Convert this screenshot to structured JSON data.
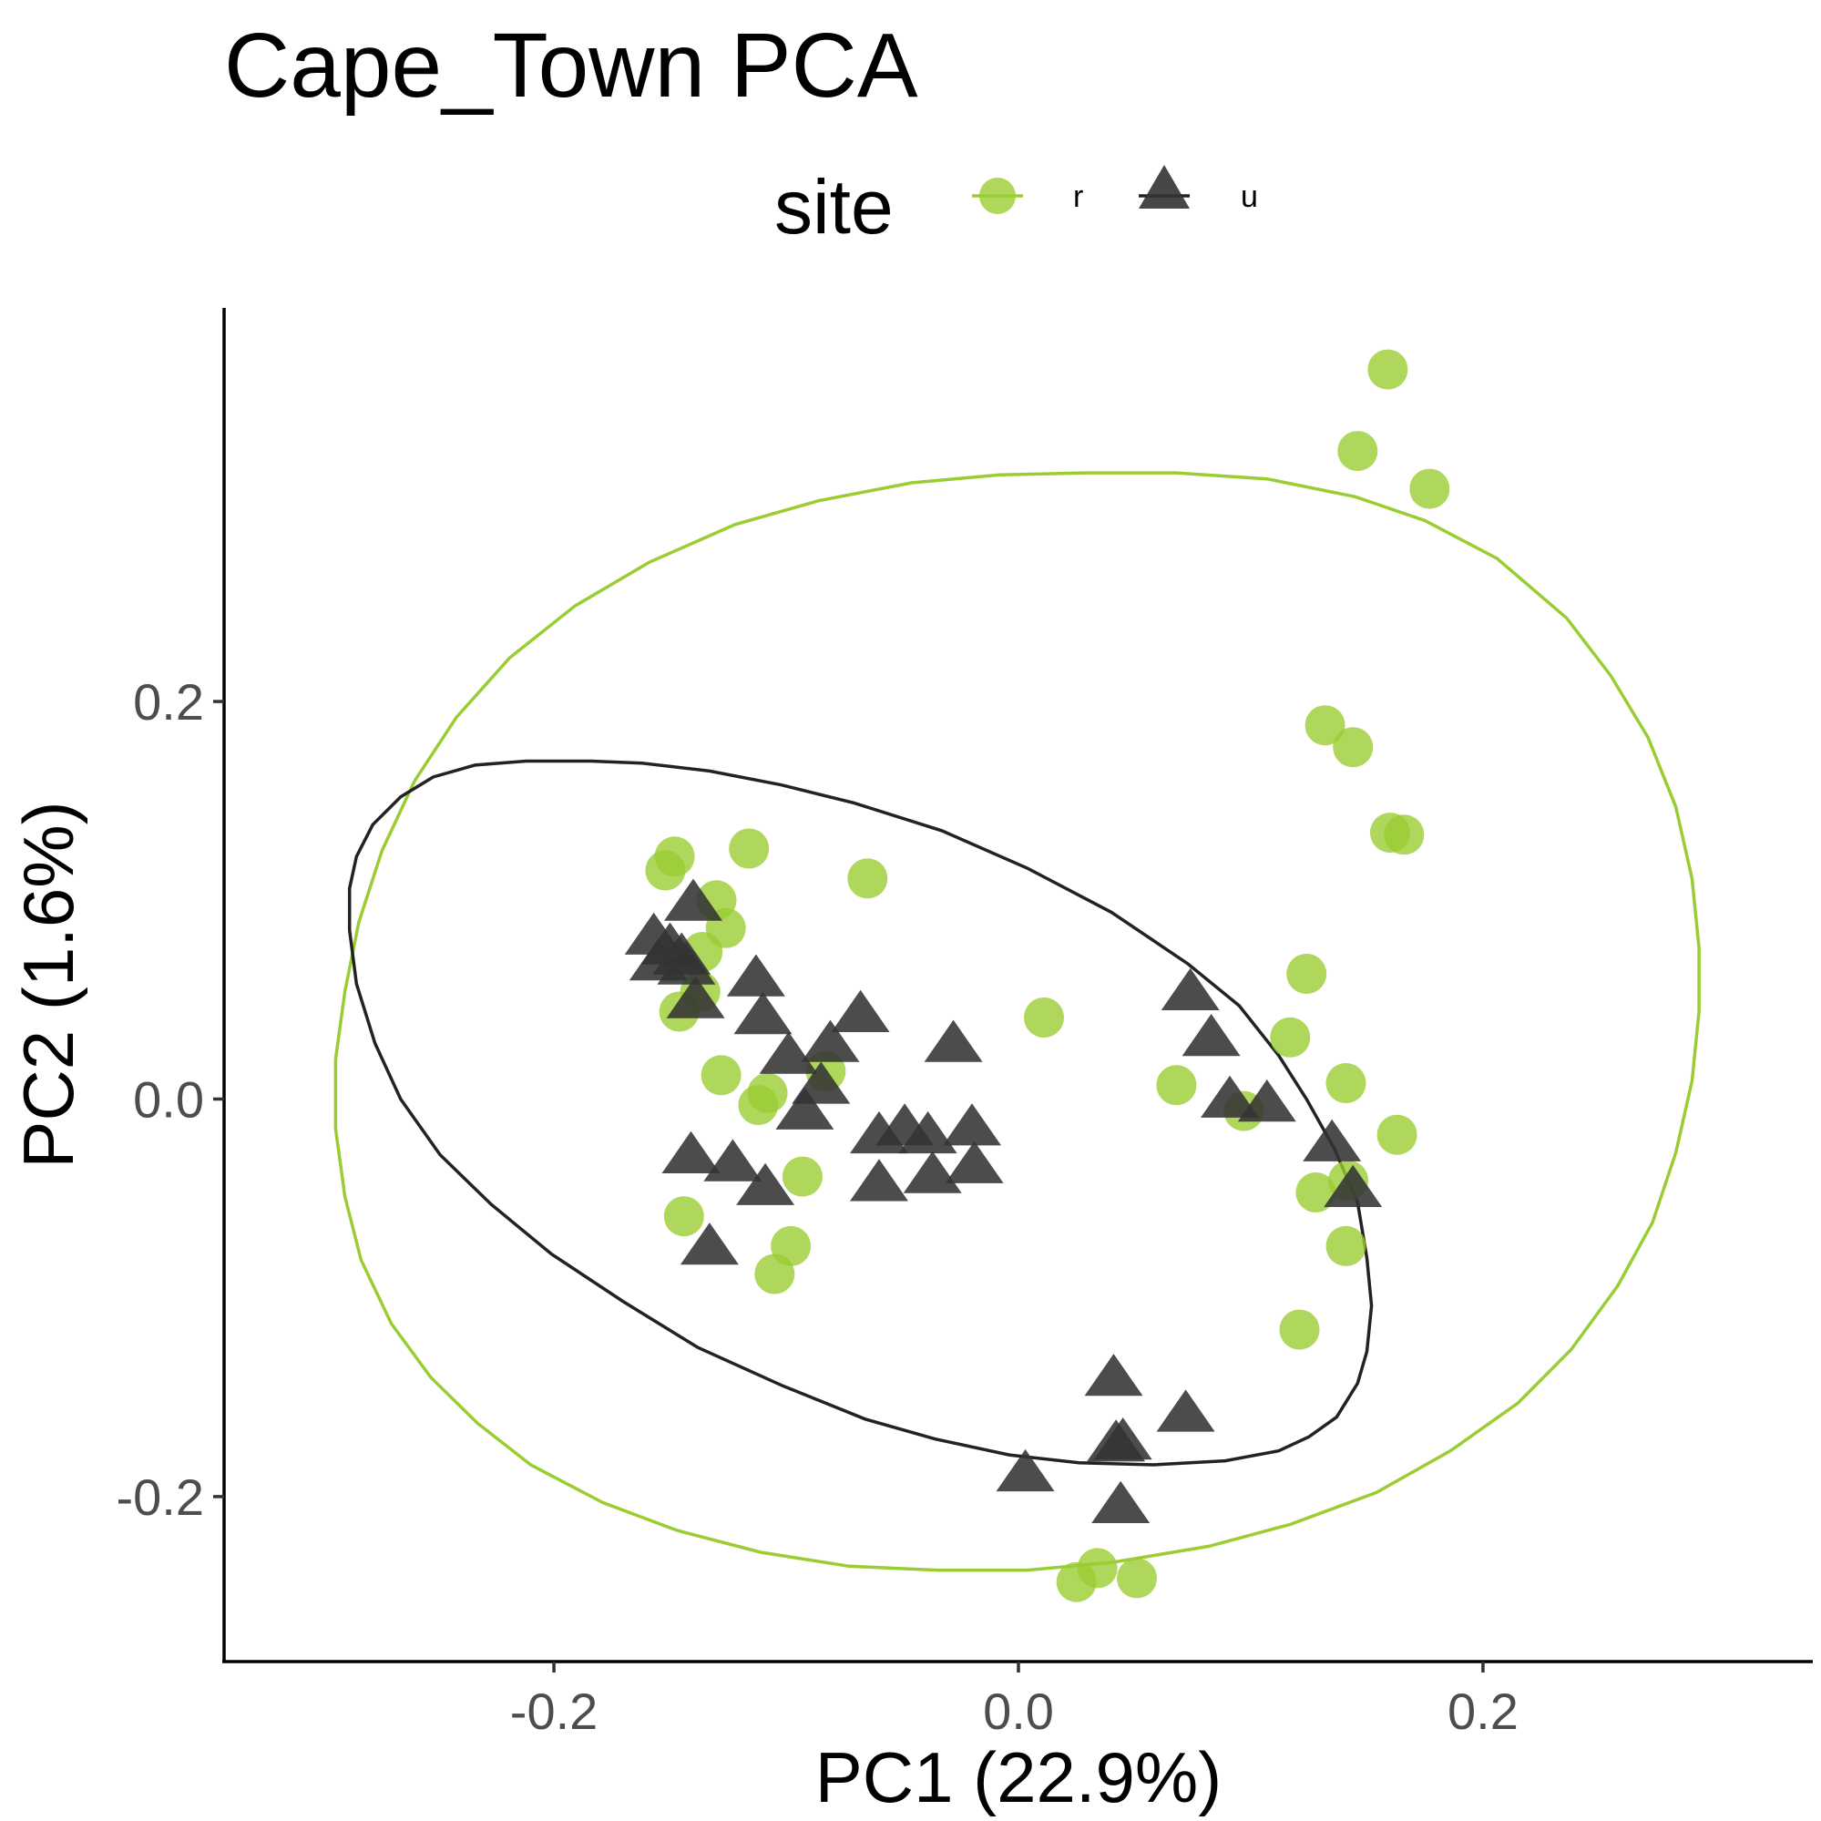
{
  "chart_data": {
    "type": "scatter",
    "title": "Cape_Town PCA",
    "xlabel": "PC1 (22.9%)",
    "ylabel": "PC2 (1.6%)",
    "xlim": [
      -0.342,
      0.342
    ],
    "ylim": [
      -0.283,
      0.398
    ],
    "x_ticks": [
      -0.2,
      0.0,
      0.2
    ],
    "x_tick_labels": [
      "-0.2",
      "0.0",
      "0.2"
    ],
    "y_ticks": [
      -0.2,
      0.0,
      0.2
    ],
    "y_tick_labels": [
      "-0.2",
      "0.0",
      "0.2"
    ],
    "grid": false,
    "legend": {
      "title": "site",
      "position": "top"
    },
    "series": [
      {
        "name": "r",
        "shape": "circle",
        "color": "#9ACD32",
        "points": [
          [
            0.159,
            0.367
          ],
          [
            0.146,
            0.326
          ],
          [
            0.177,
            0.307
          ],
          [
            0.132,
            0.188
          ],
          [
            0.144,
            0.177
          ],
          [
            0.16,
            0.134
          ],
          [
            0.166,
            0.133
          ],
          [
            -0.116,
            0.126
          ],
          [
            -0.148,
            0.122
          ],
          [
            -0.152,
            0.115
          ],
          [
            -0.065,
            0.111
          ],
          [
            -0.13,
            0.1
          ],
          [
            -0.126,
            0.086
          ],
          [
            -0.136,
            0.074
          ],
          [
            -0.137,
            0.054
          ],
          [
            -0.146,
            0.044
          ],
          [
            0.011,
            0.041
          ],
          [
            -0.128,
            0.012
          ],
          [
            -0.108,
            0.003
          ],
          [
            -0.112,
            -0.003
          ],
          [
            -0.083,
            0.014
          ],
          [
            0.124,
            0.063
          ],
          [
            0.117,
            0.031
          ],
          [
            0.068,
            0.007
          ],
          [
            0.097,
            -0.006
          ],
          [
            0.141,
            0.008
          ],
          [
            0.163,
            -0.018
          ],
          [
            0.142,
            -0.041
          ],
          [
            0.128,
            -0.047
          ],
          [
            -0.093,
            -0.039
          ],
          [
            -0.144,
            -0.059
          ],
          [
            -0.098,
            -0.074
          ],
          [
            -0.105,
            -0.088
          ],
          [
            0.141,
            -0.074
          ],
          [
            0.121,
            -0.116
          ],
          [
            0.034,
            -0.236
          ],
          [
            0.025,
            -0.243
          ],
          [
            0.051,
            -0.241
          ]
        ]
      },
      {
        "name": "u",
        "shape": "triangle",
        "color": "#333333",
        "points": [
          [
            -0.14,
            0.098
          ],
          [
            -0.157,
            0.081
          ],
          [
            -0.15,
            0.076
          ],
          [
            -0.145,
            0.071
          ],
          [
            -0.155,
            0.068
          ],
          [
            -0.143,
            0.066
          ],
          [
            -0.139,
            0.049
          ],
          [
            -0.113,
            0.06
          ],
          [
            -0.11,
            0.041
          ],
          [
            -0.068,
            0.042
          ],
          [
            -0.081,
            0.027
          ],
          [
            -0.099,
            0.021
          ],
          [
            -0.085,
            0.006
          ],
          [
            -0.092,
            -0.007
          ],
          [
            -0.028,
            0.027
          ],
          [
            -0.141,
            -0.029
          ],
          [
            -0.123,
            -0.033
          ],
          [
            -0.109,
            -0.045
          ],
          [
            -0.06,
            -0.019
          ],
          [
            -0.049,
            -0.015
          ],
          [
            -0.039,
            -0.019
          ],
          [
            -0.02,
            -0.015
          ],
          [
            -0.06,
            -0.043
          ],
          [
            -0.037,
            -0.039
          ],
          [
            -0.019,
            -0.034
          ],
          [
            -0.133,
            -0.075
          ],
          [
            0.074,
            0.053
          ],
          [
            0.083,
            0.03
          ],
          [
            0.091,
            -0.001
          ],
          [
            0.107,
            -0.003
          ],
          [
            0.135,
            -0.023
          ],
          [
            0.144,
            -0.046
          ],
          [
            0.041,
            -0.141
          ],
          [
            0.072,
            -0.159
          ],
          [
            0.042,
            -0.174
          ],
          [
            0.045,
            -0.173
          ],
          [
            0.003,
            -0.189
          ],
          [
            0.044,
            -0.205
          ]
        ]
      }
    ],
    "ellipses": [
      {
        "series": "r",
        "color": "#9ACD32",
        "points": [
          [
            0.029,
            0.315
          ],
          [
            -0.008,
            0.314
          ],
          [
            -0.046,
            0.31
          ],
          [
            -0.086,
            0.301
          ],
          [
            -0.122,
            0.289
          ],
          [
            -0.159,
            0.27
          ],
          [
            -0.191,
            0.248
          ],
          [
            -0.219,
            0.222
          ],
          [
            -0.242,
            0.192
          ],
          [
            -0.26,
            0.16
          ],
          [
            -0.274,
            0.125
          ],
          [
            -0.284,
            0.089
          ],
          [
            -0.29,
            0.054
          ],
          [
            -0.294,
            0.02
          ],
          [
            -0.294,
            -0.015
          ],
          [
            -0.29,
            -0.049
          ],
          [
            -0.283,
            -0.081
          ],
          [
            -0.27,
            -0.113
          ],
          [
            -0.253,
            -0.14
          ],
          [
            -0.233,
            -0.163
          ],
          [
            -0.21,
            -0.184
          ],
          [
            -0.179,
            -0.203
          ],
          [
            -0.147,
            -0.217
          ],
          [
            -0.111,
            -0.228
          ],
          [
            -0.073,
            -0.235
          ],
          [
            -0.035,
            -0.237
          ],
          [
            0.004,
            -0.237
          ],
          [
            0.041,
            -0.233
          ],
          [
            0.082,
            -0.225
          ],
          [
            0.117,
            -0.214
          ],
          [
            0.154,
            -0.198
          ],
          [
            0.186,
            -0.177
          ],
          [
            0.215,
            -0.153
          ],
          [
            0.238,
            -0.126
          ],
          [
            0.258,
            -0.094
          ],
          [
            0.273,
            -0.062
          ],
          [
            0.283,
            -0.027
          ],
          [
            0.29,
            0.009
          ],
          [
            0.293,
            0.044
          ],
          [
            0.293,
            0.076
          ],
          [
            0.29,
            0.111
          ],
          [
            0.283,
            0.147
          ],
          [
            0.271,
            0.182
          ],
          [
            0.255,
            0.213
          ],
          [
            0.236,
            0.242
          ],
          [
            0.206,
            0.272
          ],
          [
            0.175,
            0.291
          ],
          [
            0.145,
            0.303
          ],
          [
            0.107,
            0.312
          ],
          [
            0.068,
            0.315
          ],
          [
            0.029,
            0.315
          ]
        ]
      },
      {
        "series": "u",
        "color": "#222222",
        "points": [
          [
            -0.184,
            0.17
          ],
          [
            -0.162,
            0.169
          ],
          [
            -0.133,
            0.165
          ],
          [
            -0.102,
            0.158
          ],
          [
            -0.071,
            0.149
          ],
          [
            -0.033,
            0.135
          ],
          [
            0.004,
            0.116
          ],
          [
            0.04,
            0.094
          ],
          [
            0.073,
            0.068
          ],
          [
            0.095,
            0.047
          ],
          [
            0.112,
            0.022
          ],
          [
            0.124,
            0.0
          ],
          [
            0.136,
            -0.025
          ],
          [
            0.146,
            -0.052
          ],
          [
            0.15,
            -0.08
          ],
          [
            0.152,
            -0.104
          ],
          [
            0.15,
            -0.127
          ],
          [
            0.146,
            -0.143
          ],
          [
            0.137,
            -0.16
          ],
          [
            0.125,
            -0.17
          ],
          [
            0.112,
            -0.177
          ],
          [
            0.089,
            -0.182
          ],
          [
            0.058,
            -0.184
          ],
          [
            0.026,
            -0.183
          ],
          [
            -0.004,
            -0.179
          ],
          [
            -0.036,
            -0.171
          ],
          [
            -0.066,
            -0.161
          ],
          [
            -0.102,
            -0.144
          ],
          [
            -0.138,
            -0.125
          ],
          [
            -0.17,
            -0.102
          ],
          [
            -0.201,
            -0.078
          ],
          [
            -0.227,
            -0.053
          ],
          [
            -0.249,
            -0.028
          ],
          [
            -0.266,
            0.0
          ],
          [
            -0.277,
            0.028
          ],
          [
            -0.285,
            0.058
          ],
          [
            -0.288,
            0.085
          ],
          [
            -0.288,
            0.106
          ],
          [
            -0.285,
            0.122
          ],
          [
            -0.278,
            0.138
          ],
          [
            -0.266,
            0.152
          ],
          [
            -0.252,
            0.162
          ],
          [
            -0.234,
            0.168
          ],
          [
            -0.212,
            0.17
          ],
          [
            -0.184,
            0.17
          ]
        ]
      }
    ]
  }
}
